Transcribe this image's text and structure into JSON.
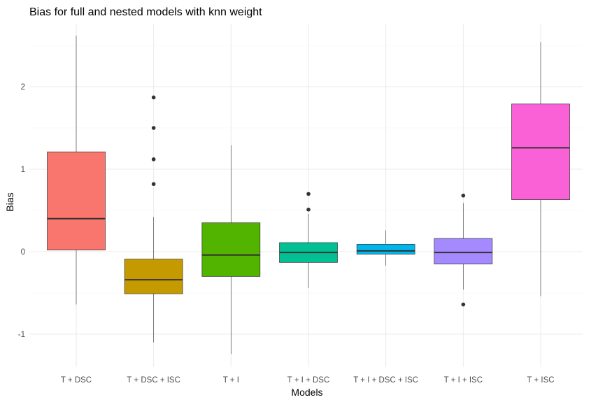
{
  "chart_data": {
    "type": "boxplot",
    "title": "Bias for full and nested models with knn weight",
    "xlabel": "Models",
    "ylabel": "Bias",
    "ylim": [
      -1.45,
      2.75
    ],
    "yticks": [
      -1,
      0,
      1,
      2
    ],
    "grid": true,
    "legend": "none",
    "categories": [
      "T + DSC",
      "T + DSC + ISC",
      "T + I",
      "T + I + DSC",
      "T + I + DSC + ISC",
      "T + I + ISC",
      "T + ISC"
    ],
    "boxes": [
      {
        "name": "T + DSC",
        "min": -0.64,
        "q1": 0.02,
        "median": 0.4,
        "q3": 1.21,
        "max": 2.62,
        "outliers": [],
        "color": "#F8766D"
      },
      {
        "name": "T + DSC + ISC",
        "min": -1.1,
        "q1": -0.51,
        "median": -0.34,
        "q3": -0.09,
        "max": 0.42,
        "outliers": [
          0.82,
          1.12,
          1.5,
          1.87
        ],
        "color": "#C49A00"
      },
      {
        "name": "T + I",
        "min": -1.24,
        "q1": -0.3,
        "median": -0.04,
        "q3": 0.35,
        "max": 1.29,
        "outliers": [],
        "color": "#53B400"
      },
      {
        "name": "T + I + DSC",
        "min": -0.44,
        "q1": -0.13,
        "median": -0.01,
        "q3": 0.11,
        "max": 0.46,
        "outliers": [
          0.51,
          0.7
        ],
        "color": "#00C094"
      },
      {
        "name": "T + I + DSC + ISC",
        "min": -0.17,
        "q1": -0.03,
        "median": 0.01,
        "q3": 0.09,
        "max": 0.26,
        "outliers": [],
        "color": "#00B6EB"
      },
      {
        "name": "T + I + ISC",
        "min": -0.46,
        "q1": -0.15,
        "median": -0.01,
        "q3": 0.16,
        "max": 0.59,
        "outliers": [
          0.68,
          -0.64
        ],
        "color": "#A58AFF"
      },
      {
        "name": "T + ISC",
        "min": -0.54,
        "q1": 0.63,
        "median": 1.26,
        "q3": 1.79,
        "max": 2.54,
        "outliers": [],
        "color": "#FB61D7"
      }
    ]
  }
}
